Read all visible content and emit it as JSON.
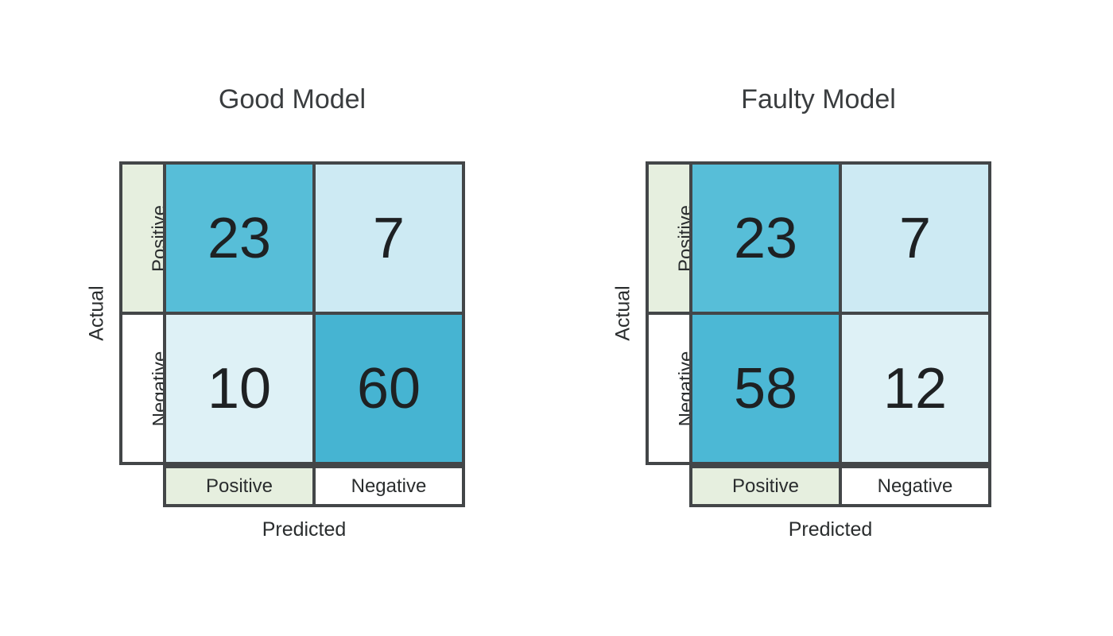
{
  "palette": {
    "border": "#434648",
    "text": "#2a2d2e",
    "title-text": "#3a3d3f",
    "page-bg": "#ffffff",
    "label_green": "#e6efdf",
    "label_white": "#ffffff"
  },
  "figures": [
    {
      "title": "Good Model",
      "x_axis_label": "Predicted",
      "y_axis_label": "Actual",
      "row_labels": [
        "Positive",
        "Negative"
      ],
      "col_labels": [
        "Positive",
        "Negative"
      ],
      "cells": [
        [
          {
            "value": "23",
            "bg": "#57bed8"
          },
          {
            "value": "7",
            "bg": "#cdeaf3"
          }
        ],
        [
          {
            "value": "10",
            "bg": "#def1f6"
          },
          {
            "value": "60",
            "bg": "#46b4d2"
          }
        ]
      ]
    },
    {
      "title": "Faulty Model",
      "x_axis_label": "Predicted",
      "y_axis_label": "Actual",
      "row_labels": [
        "Positive",
        "Negative"
      ],
      "col_labels": [
        "Positive",
        "Negative"
      ],
      "cells": [
        [
          {
            "value": "23",
            "bg": "#57bed8"
          },
          {
            "value": "7",
            "bg": "#cdeaf3"
          }
        ],
        [
          {
            "value": "58",
            "bg": "#4cb8d5"
          },
          {
            "value": "12",
            "bg": "#def1f6"
          }
        ]
      ]
    }
  ],
  "chart_data": [
    {
      "type": "heatmap",
      "title": "Good Model",
      "xlabel": "Predicted",
      "ylabel": "Actual",
      "x_categories": [
        "Positive",
        "Negative"
      ],
      "y_categories": [
        "Positive",
        "Negative"
      ],
      "values": [
        [
          23,
          7
        ],
        [
          10,
          60
        ]
      ],
      "legend": "none",
      "grid": "off"
    },
    {
      "type": "heatmap",
      "title": "Faulty Model",
      "xlabel": "Predicted",
      "ylabel": "Actual",
      "x_categories": [
        "Positive",
        "Negative"
      ],
      "y_categories": [
        "Positive",
        "Negative"
      ],
      "values": [
        [
          23,
          7
        ],
        [
          58,
          12
        ]
      ],
      "legend": "none",
      "grid": "off"
    }
  ]
}
